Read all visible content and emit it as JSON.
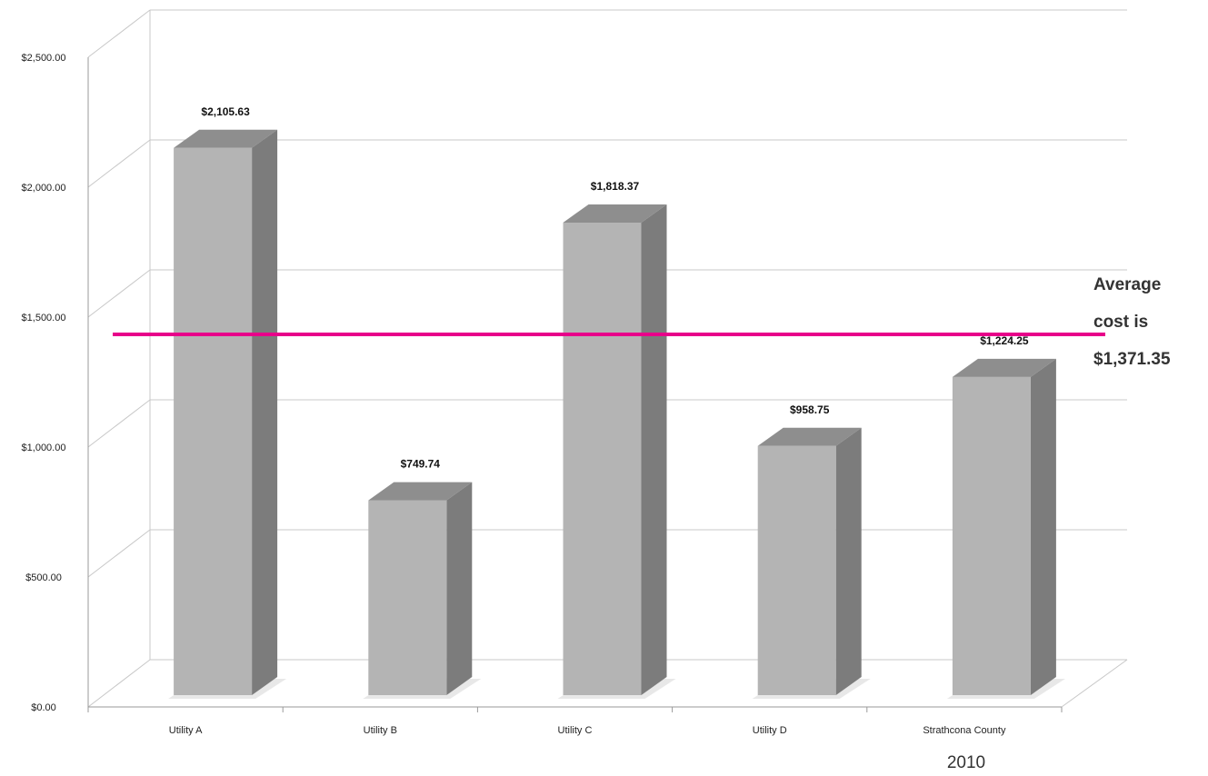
{
  "chart_data": {
    "type": "bar",
    "style": "3d-column",
    "categories": [
      "Utility A",
      "Utility B",
      "Utility C",
      "Utility D",
      "Strathcona County"
    ],
    "values": [
      2105.63,
      749.74,
      1818.37,
      958.75,
      1224.25
    ],
    "data_labels": [
      "$2,105.63",
      "$749.74",
      "$1,818.37",
      "$958.75",
      "$1,224.25"
    ],
    "y_ticks": [
      0,
      500,
      1000,
      1500,
      2000,
      2500
    ],
    "y_tick_labels": [
      "$0.00",
      "$500.00",
      "$1,000.00",
      "$1,500.00",
      "$2,000.00",
      "$2,500.00"
    ],
    "ylim": [
      0,
      2500
    ],
    "grid": true,
    "legend": "none",
    "average_line": {
      "value": 1371.35,
      "label_lines": [
        "Average",
        "cost is",
        "$1,371.35"
      ],
      "color": "#e8008a"
    },
    "xlabel": "2010",
    "colors": {
      "bar_front": "#b4b4b4",
      "bar_side": "#7c7c7c",
      "bar_top": "#8e8e8e",
      "grid": "#c8c8c8",
      "axis": "#9a9a9a"
    }
  }
}
